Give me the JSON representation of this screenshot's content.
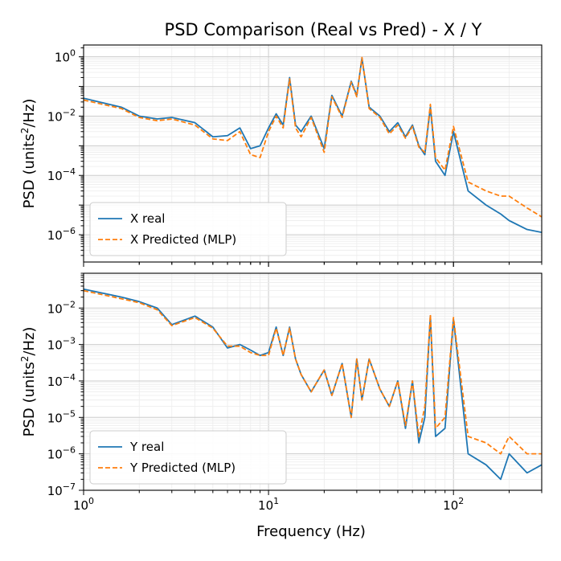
{
  "chart_data": {
    "type": "line",
    "title": "PSD Comparison (Real vs Pred) - X / Y",
    "xlabel": "Frequency (Hz)",
    "xscale": "log",
    "xlim": [
      1,
      300
    ],
    "x_ticks": [
      {
        "value": 1,
        "mantissa": "10",
        "exp": "0"
      },
      {
        "value": 10,
        "mantissa": "10",
        "exp": "1"
      },
      {
        "value": 100,
        "mantissa": "10",
        "exp": "2"
      }
    ],
    "colors": {
      "real": "#1f77b4",
      "pred": "#ff7f0e"
    },
    "x": [
      1,
      1.6,
      2,
      2.5,
      3,
      4,
      5,
      6,
      7,
      8,
      9,
      10,
      11,
      12,
      13,
      14,
      15,
      17,
      20,
      22,
      25,
      28,
      30,
      32,
      35,
      40,
      45,
      50,
      55,
      60,
      65,
      70,
      75,
      80,
      90,
      100,
      120,
      150,
      180,
      200,
      250,
      300
    ],
    "panels": [
      {
        "ylabel_pre": "PSD (units",
        "ylabel_sup": "2",
        "ylabel_post": "/Hz)",
        "yscale": "log",
        "ylim": [
          1.2e-07,
          2.5
        ],
        "y_ticks": [
          {
            "value": 1e-06,
            "mantissa": "10",
            "exp": "−6"
          },
          {
            "value": 0.0001,
            "mantissa": "10",
            "exp": "−4"
          },
          {
            "value": 0.01,
            "mantissa": "10",
            "exp": "−2"
          },
          {
            "value": 1,
            "mantissa": "10",
            "exp": "0"
          }
        ],
        "legend": {
          "position": "lower-left",
          "real": "X real",
          "pred": "X Predicted (MLP)"
        },
        "series": [
          {
            "name": "X real",
            "values": [
              0.04,
              0.02,
              0.01,
              0.008,
              0.009,
              0.006,
              0.002,
              0.0022,
              0.004,
              0.0008,
              0.001,
              0.004,
              0.012,
              0.005,
              0.2,
              0.005,
              0.003,
              0.01,
              0.0008,
              0.05,
              0.01,
              0.15,
              0.05,
              0.9,
              0.02,
              0.01,
              0.003,
              0.006,
              0.002,
              0.005,
              0.001,
              0.0005,
              0.02,
              0.0003,
              0.0001,
              0.003,
              3e-05,
              1e-05,
              5e-06,
              3e-06,
              1.5e-06,
              1.2e-06
            ]
          },
          {
            "name": "X Predicted (MLP)",
            "values": [
              0.035,
              0.018,
              0.009,
              0.007,
              0.008,
              0.005,
              0.0017,
              0.0015,
              0.003,
              0.0005,
              0.0004,
              0.003,
              0.01,
              0.004,
              0.18,
              0.004,
              0.002,
              0.009,
              0.0006,
              0.045,
              0.009,
              0.14,
              0.045,
              0.95,
              0.018,
              0.009,
              0.0025,
              0.005,
              0.0018,
              0.0045,
              0.0009,
              0.0006,
              0.025,
              0.0004,
              0.00015,
              0.0045,
              6e-05,
              3e-05,
              2e-05,
              2e-05,
              8e-06,
              4e-06
            ]
          }
        ]
      },
      {
        "ylabel_pre": "PSD (units",
        "ylabel_sup": "2",
        "ylabel_post": "/Hz)",
        "yscale": "log",
        "ylim": [
          1e-07,
          0.09
        ],
        "y_ticks": [
          {
            "value": 1e-07,
            "mantissa": "10",
            "exp": "−7"
          },
          {
            "value": 1e-06,
            "mantissa": "10",
            "exp": "−6"
          },
          {
            "value": 1e-05,
            "mantissa": "10",
            "exp": "−5"
          },
          {
            "value": 0.0001,
            "mantissa": "10",
            "exp": "−4"
          },
          {
            "value": 0.001,
            "mantissa": "10",
            "exp": "−3"
          },
          {
            "value": 0.01,
            "mantissa": "10",
            "exp": "−2"
          }
        ],
        "legend": {
          "position": "lower-left",
          "real": "Y real",
          "pred": "Y Predicted (MLP)"
        },
        "series": [
          {
            "name": "Y real",
            "values": [
              0.033,
              0.02,
              0.015,
              0.01,
              0.0035,
              0.006,
              0.003,
              0.0008,
              0.001,
              0.0007,
              0.0005,
              0.0006,
              0.003,
              0.0005,
              0.003,
              0.0004,
              0.00015,
              5e-05,
              0.0002,
              4e-05,
              0.0003,
              1e-05,
              0.0004,
              3e-05,
              0.0004,
              6e-05,
              2e-05,
              0.0001,
              5e-06,
              0.0001,
              2e-06,
              1e-05,
              0.006,
              3e-06,
              5e-06,
              0.005,
              1e-06,
              5e-07,
              2e-07,
              1e-06,
              3e-07,
              5e-07
            ]
          },
          {
            "name": "Y Predicted (MLP)",
            "values": [
              0.03,
              0.018,
              0.014,
              0.009,
              0.0033,
              0.0055,
              0.0028,
              0.0009,
              0.0009,
              0.0006,
              0.0005,
              0.0005,
              0.0028,
              0.0005,
              0.0028,
              0.0004,
              0.00015,
              5e-05,
              0.0002,
              4e-05,
              0.0003,
              1e-05,
              0.0004,
              3e-05,
              0.0004,
              6e-05,
              2e-05,
              0.0001,
              6e-06,
              0.0001,
              3e-06,
              2e-05,
              0.0065,
              5e-06,
              1e-05,
              0.0055,
              3e-06,
              2e-06,
              1e-06,
              3e-06,
              1e-06,
              1e-06
            ]
          }
        ]
      }
    ]
  }
}
